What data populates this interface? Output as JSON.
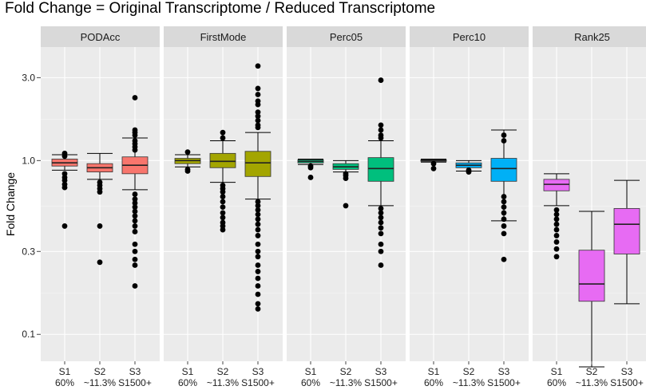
{
  "chart_data": {
    "type": "box",
    "title": "Fold Change = Original Transcriptome / Reduced Transcriptome",
    "ylabel": "Fold Change",
    "xlabel": "",
    "y_scale": "log10",
    "ylim": [
      0.07,
      4.5
    ],
    "y_ticks": [
      {
        "value": 0.1,
        "label": "0.1"
      },
      {
        "value": 0.3,
        "label": "0.3"
      },
      {
        "value": 1.0,
        "label": "1.0"
      },
      {
        "value": 3.0,
        "label": "3.0"
      }
    ],
    "categories": [
      {
        "label": "S1",
        "sublabel": "60%"
      },
      {
        "label": "S2",
        "sublabel": "~11.3%"
      },
      {
        "label": "S3",
        "sublabel": "S1500+"
      }
    ],
    "grid": true,
    "facets": [
      {
        "name": "PODAcc",
        "color": "#F8766D",
        "boxes": [
          {
            "lower_whisker": 0.88,
            "q1": 0.93,
            "median": 0.97,
            "q3": 1.02,
            "upper_whisker": 1.08,
            "outliers": [
              0.84,
              0.8,
              0.77,
              0.73,
              0.7,
              1.1,
              1.06,
              0.42
            ]
          },
          {
            "lower_whisker": 0.78,
            "q1": 0.86,
            "median": 0.91,
            "q3": 0.96,
            "upper_whisker": 1.1,
            "outliers": [
              0.75,
              0.72,
              0.69,
              0.66,
              0.42,
              0.26
            ]
          },
          {
            "lower_whisker": 0.68,
            "q1": 0.84,
            "median": 0.94,
            "q3": 1.05,
            "upper_whisker": 1.35,
            "outliers": [
              2.3,
              1.5,
              1.45,
              1.4,
              1.3,
              1.25,
              1.2,
              1.15,
              0.64,
              0.6,
              0.57,
              0.54,
              0.51,
              0.48,
              0.45,
              0.42,
              0.39,
              0.33,
              0.3,
              0.27,
              0.25,
              0.19
            ]
          }
        ]
      },
      {
        "name": "FirstMode",
        "color": "#A3A500",
        "boxes": [
          {
            "lower_whisker": 0.92,
            "q1": 0.96,
            "median": 1.0,
            "q3": 1.03,
            "upper_whisker": 1.08,
            "outliers": [
              1.12,
              0.89,
              0.87
            ]
          },
          {
            "lower_whisker": 0.75,
            "q1": 0.91,
            "median": 0.99,
            "q3": 1.1,
            "upper_whisker": 1.3,
            "outliers": [
              1.45,
              1.35,
              0.72,
              0.69,
              0.66,
              0.62,
              0.58,
              0.54,
              0.5,
              0.47,
              0.44,
              0.42,
              0.4
            ]
          },
          {
            "lower_whisker": 0.6,
            "q1": 0.81,
            "median": 0.97,
            "q3": 1.13,
            "upper_whisker": 1.45,
            "outliers": [
              3.5,
              2.6,
              2.4,
              2.2,
              2.1,
              1.9,
              1.8,
              1.7,
              1.6,
              1.55,
              0.58,
              0.55,
              0.52,
              0.49,
              0.46,
              0.43,
              0.4,
              0.37,
              0.33,
              0.3,
              0.28,
              0.25,
              0.23,
              0.21,
              0.19,
              0.17,
              0.15,
              0.14
            ]
          }
        ]
      },
      {
        "name": "Perc05",
        "color": "#00BF7D",
        "boxes": [
          {
            "lower_whisker": 0.95,
            "q1": 0.97,
            "median": 0.99,
            "q3": 1.01,
            "upper_whisker": 1.02,
            "outliers": [
              0.93,
              0.91,
              0.8
            ]
          },
          {
            "lower_whisker": 0.86,
            "q1": 0.89,
            "median": 0.92,
            "q3": 0.96,
            "upper_whisker": 1.0,
            "outliers": [
              0.84,
              0.82,
              0.79,
              0.55
            ]
          },
          {
            "lower_whisker": 0.55,
            "q1": 0.76,
            "median": 0.9,
            "q3": 1.04,
            "upper_whisker": 1.3,
            "outliers": [
              2.9,
              1.6,
              1.5,
              1.4,
              1.35,
              0.53,
              0.5,
              0.47,
              0.44,
              0.41,
              0.38,
              0.33,
              0.3,
              0.25
            ]
          }
        ]
      },
      {
        "name": "Perc10",
        "color": "#00B0F6",
        "boxes": [
          {
            "lower_whisker": 0.98,
            "q1": 0.99,
            "median": 1.0,
            "q3": 1.01,
            "upper_whisker": 1.02,
            "outliers": [
              0.96,
              0.9
            ]
          },
          {
            "lower_whisker": 0.87,
            "q1": 0.91,
            "median": 0.94,
            "q3": 0.97,
            "upper_whisker": 1.0,
            "outliers": [
              0.88,
              0.86
            ]
          },
          {
            "lower_whisker": 0.45,
            "q1": 0.76,
            "median": 0.9,
            "q3": 1.03,
            "upper_whisker": 1.5,
            "outliers": [
              1.4,
              1.3,
              0.62,
              0.58,
              0.54,
              0.5,
              0.46,
              0.42,
              0.38,
              0.27
            ]
          }
        ]
      },
      {
        "name": "Rank25",
        "color": "#E76BF3",
        "boxes": [
          {
            "lower_whisker": 0.55,
            "q1": 0.67,
            "median": 0.73,
            "q3": 0.78,
            "upper_whisker": 0.84,
            "outliers": [
              0.52,
              0.49,
              0.46,
              0.43,
              0.4,
              0.37,
              0.34,
              0.31,
              0.28
            ]
          },
          {
            "lower_whisker": 0.065,
            "q1": 0.155,
            "median": 0.195,
            "q3": 0.305,
            "upper_whisker": 0.51,
            "outliers": []
          },
          {
            "lower_whisker": 0.15,
            "q1": 0.29,
            "median": 0.43,
            "q3": 0.53,
            "upper_whisker": 0.77,
            "outliers": []
          }
        ]
      }
    ]
  }
}
